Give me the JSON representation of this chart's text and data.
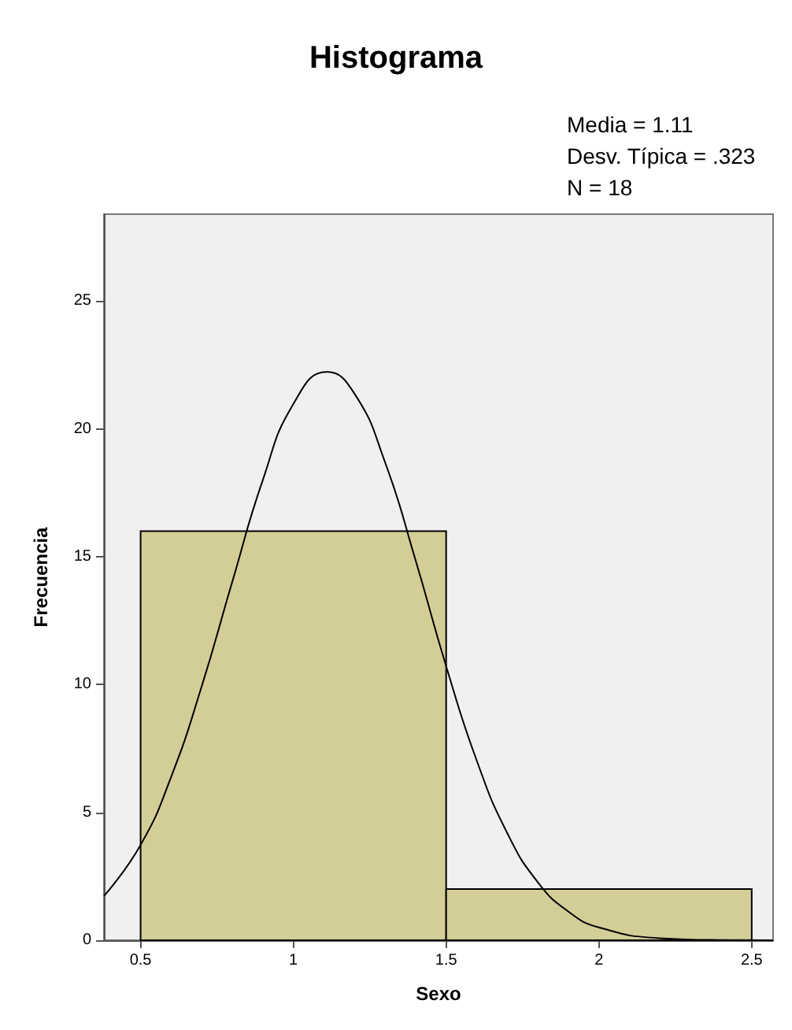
{
  "chart_data": {
    "type": "histogram",
    "title": "Histograma",
    "xlabel": "Sexo",
    "ylabel": "Frecuencia",
    "annotations": [
      "Media = 1.11",
      "Desv. Típica = .323",
      "N = 18"
    ],
    "series": [
      {
        "bins": [
          0.5,
          1.5,
          2.5
        ],
        "values": [
          16,
          2
        ],
        "color": "#d3ce97"
      },
      {
        "type": "line",
        "color": "#000000",
        "x": [
          0.38,
          0.5,
          0.6,
          0.7,
          0.8,
          0.9,
          1.0,
          1.11,
          1.2,
          1.3,
          1.4,
          1.5,
          1.6,
          1.7,
          1.8,
          1.9,
          2.0,
          2.2,
          2.4,
          2.57
        ],
        "values": [
          1.73,
          3.73,
          6.39,
          9.93,
          14.02,
          18.0,
          20.98,
          22.23,
          21.38,
          18.7,
          14.86,
          10.72,
          7.03,
          4.19,
          2.27,
          1.12,
          0.5,
          0.08,
          0.01,
          0
        ]
      }
    ],
    "xlim": [
      0.38,
      2.57
    ],
    "xticks": [
      0.5,
      1,
      1.5,
      2,
      2.5
    ],
    "ylim": [
      0,
      28.4
    ],
    "yticks": [
      0,
      5,
      10,
      15,
      20,
      25
    ],
    "grid": false,
    "marker": "none",
    "line_style": "solid"
  }
}
